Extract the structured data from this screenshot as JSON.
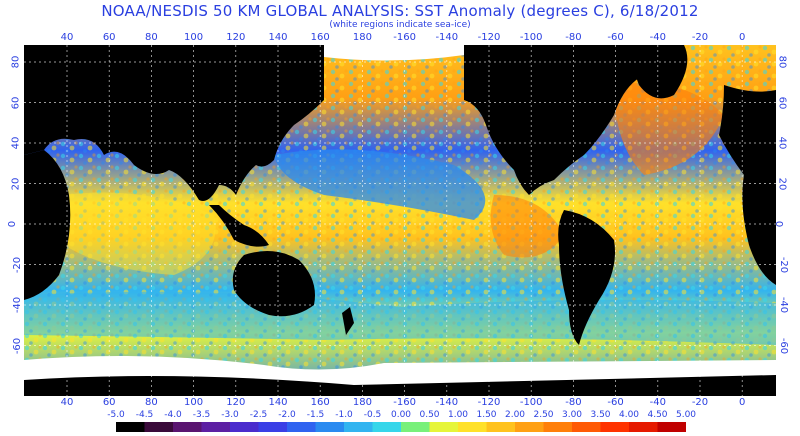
{
  "title": "NOAA/NESDIS 50 KM GLOBAL ANALYSIS: SST Anomaly (degrees C), 6/18/2012",
  "subtitle": "(white regions indicate sea-ice)",
  "longitude_ticks": [
    "40",
    "60",
    "80",
    "100",
    "120",
    "140",
    "160",
    "180",
    "-160",
    "-140",
    "-120",
    "-100",
    "-80",
    "-60",
    "-40",
    "-20",
    "0"
  ],
  "latitude_ticks": [
    "80",
    "60",
    "40",
    "20",
    "0",
    "-20",
    "-40",
    "-60"
  ],
  "colorbar": {
    "labels": [
      "-5.0",
      "-4.5",
      "-4.0",
      "-3.5",
      "-3.0",
      "-2.5",
      "-2.0",
      "-1.5",
      "-1.0",
      "-0.5",
      "0.00",
      "0.50",
      "1.00",
      "1.50",
      "2.00",
      "2.50",
      "3.00",
      "3.50",
      "4.00",
      "4.50",
      "5.00"
    ],
    "colors": [
      "#000000",
      "#3a0a3a",
      "#5a1470",
      "#5d1fa3",
      "#4b2ccd",
      "#3a3fe6",
      "#2f63f0",
      "#2a8af0",
      "#32b4f0",
      "#36d6ea",
      "#78f07a",
      "#e6f53a",
      "#ffe12a",
      "#ffc21e",
      "#ffa014",
      "#ff7f0a",
      "#ff5a05",
      "#ff3300",
      "#e61a00",
      "#c00000"
    ]
  },
  "map": {
    "land_color": "#000000",
    "ice_color": "#ffffff",
    "grid_color": "#ffffff"
  }
}
